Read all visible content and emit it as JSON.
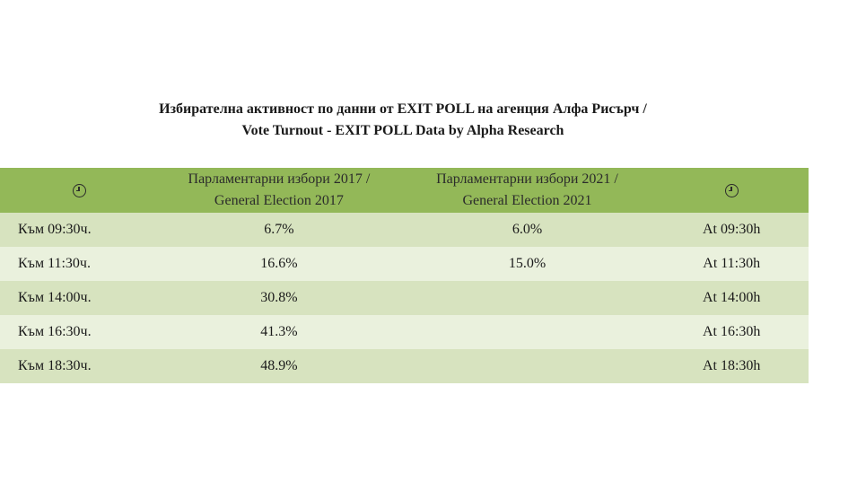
{
  "title": {
    "line1": "Избирателна активност по данни от EXIT POLL на агенция Алфа Рисърч /",
    "line2": "Vote Turnout - EXIT POLL Data by Alpha Research"
  },
  "table": {
    "header_icon": "clock-icon",
    "col_2017": {
      "line1": "Парламентарни избори 2017 /",
      "line2": "General Election 2017"
    },
    "col_2021": {
      "line1": "Парламентарни избори 2021 /",
      "line2": "General Election 2021"
    },
    "rows": [
      {
        "time_bg": "Към 09:30ч.",
        "val_2017": "6.7%",
        "val_2021": "6.0%",
        "time_en": "At 09:30h"
      },
      {
        "time_bg": "Към 11:30ч.",
        "val_2017": "16.6%",
        "val_2021": "15.0%",
        "time_en": "At 11:30h"
      },
      {
        "time_bg": "Към 14:00ч.",
        "val_2017": "30.8%",
        "val_2021": "",
        "time_en": "At 14:00h"
      },
      {
        "time_bg": "Към 16:30ч.",
        "val_2017": "41.3%",
        "val_2021": "",
        "time_en": "At 16:30h"
      },
      {
        "time_bg": "Към 18:30ч.",
        "val_2017": "48.9%",
        "val_2021": "",
        "time_en": "At 18:30h"
      }
    ]
  },
  "colors": {
    "header_bg": "#93b858",
    "row_odd_bg": "#d7e3bf",
    "row_even_bg": "#eaf1dd"
  }
}
